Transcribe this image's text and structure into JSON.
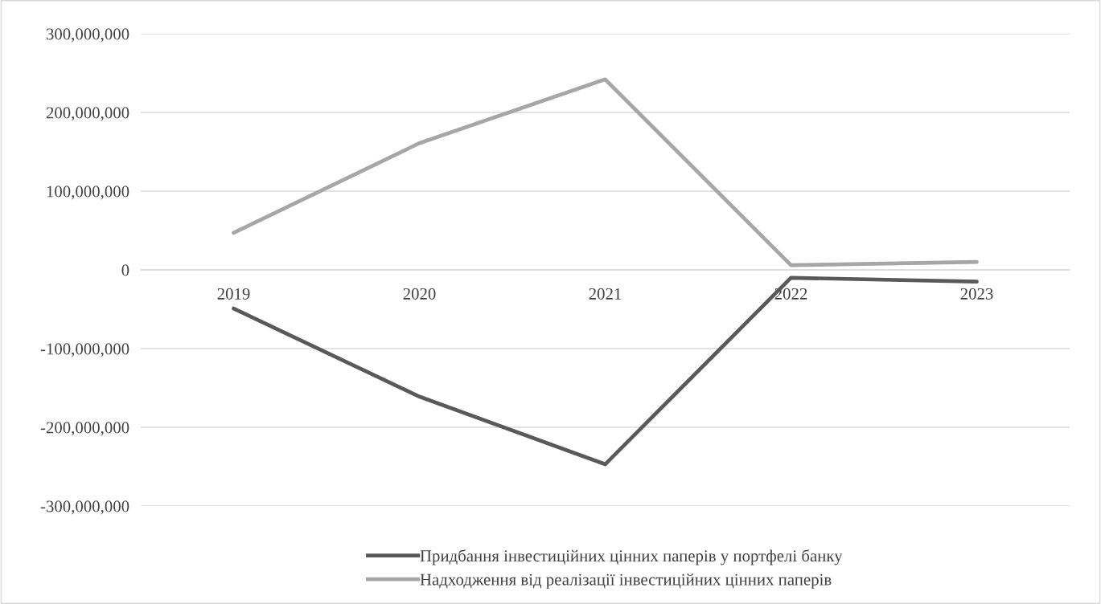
{
  "chart_data": {
    "type": "line",
    "categories": [
      "2019",
      "2020",
      "2021",
      "2022",
      "2023"
    ],
    "series": [
      {
        "name": "Придбання інвестиційних цінних паперів у портфелі банку",
        "color": "#595959",
        "values": [
          -49000000,
          -161000000,
          -247000000,
          -10000000,
          -15000000
        ]
      },
      {
        "name": "Надходження від реалізації інвестиційних цінних паперів",
        "color": "#a6a6a6",
        "values": [
          47000000,
          161000000,
          242000000,
          6000000,
          10000000
        ]
      }
    ],
    "ylim": [
      -300000000,
      300000000
    ],
    "yticks": [
      {
        "value": -300000000,
        "label": "-300,000,000"
      },
      {
        "value": -200000000,
        "label": "-200,000,000"
      },
      {
        "value": -100000000,
        "label": "-100,000,000"
      },
      {
        "value": 0,
        "label": "0"
      },
      {
        "value": 100000000,
        "label": "100,000,000"
      },
      {
        "value": 200000000,
        "label": "200,000,000"
      },
      {
        "value": 300000000,
        "label": "300,000,000"
      }
    ],
    "grid": "y",
    "legend": "bottom",
    "marker": "none",
    "line_style": "solid"
  }
}
